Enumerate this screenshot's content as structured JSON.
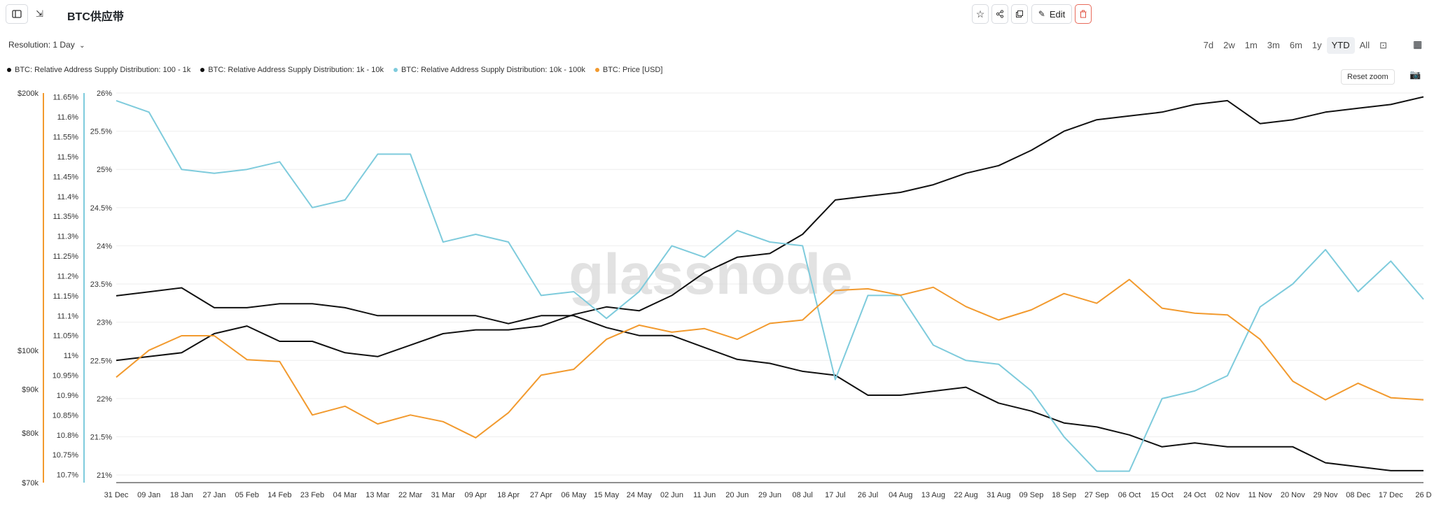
{
  "header": {
    "title": "BTC供应带",
    "edit_label": "Edit"
  },
  "controls": {
    "resolution_label": "Resolution: 1 Day",
    "ranges": [
      "7d",
      "2w",
      "1m",
      "3m",
      "6m",
      "1y",
      "YTD",
      "All"
    ],
    "active_range": "YTD",
    "reset_zoom": "Reset zoom"
  },
  "legend": [
    {
      "name": "BTC: Relative Address Supply Distribution: 100 - 1k",
      "color": "#111111"
    },
    {
      "name": "BTC: Relative Address Supply Distribution: 1k - 10k",
      "color": "#111111"
    },
    {
      "name": "BTC: Relative Address Supply Distribution: 10k - 100k",
      "color": "#7ecbdc"
    },
    {
      "name": "BTC: Price [USD]",
      "color": "#f29a2e"
    }
  ],
  "watermark": "glassnode",
  "chart_data": {
    "type": "line",
    "grid": true,
    "x_ticks": [
      "31 Dec",
      "09 Jan",
      "18 Jan",
      "27 Jan",
      "05 Feb",
      "14 Feb",
      "23 Feb",
      "04 Mar",
      "13 Mar",
      "22 Mar",
      "31 Mar",
      "09 Apr",
      "18 Apr",
      "27 Apr",
      "06 May",
      "15 May",
      "24 May",
      "02 Jun",
      "11 Jun",
      "20 Jun",
      "29 Jun",
      "08 Jul",
      "17 Jul",
      "26 Jul",
      "04 Aug",
      "13 Aug",
      "22 Aug",
      "31 Aug",
      "09 Sep",
      "18 Sep",
      "27 Sep",
      "06 Oct",
      "15 Oct",
      "24 Oct",
      "02 Nov",
      "11 Nov",
      "20 Nov",
      "29 Nov",
      "08 Dec",
      "17 Dec",
      "26 D"
    ],
    "axes": {
      "left_pct": {
        "ticks": [
          "26%",
          "25.5%",
          "25%",
          "24.5%",
          "24%",
          "23.5%",
          "23%",
          "22.5%",
          "22%",
          "21.5%",
          "21%"
        ],
        "range": [
          20.9,
          26.0
        ]
      },
      "mid_pct": {
        "ticks": [
          "11.65%",
          "11.6%",
          "11.55%",
          "11.5%",
          "11.45%",
          "11.4%",
          "11.35%",
          "11.3%",
          "11.25%",
          "11.2%",
          "11.15%",
          "11.1%",
          "11.05%",
          "11%",
          "10.95%",
          "10.9%",
          "10.85%",
          "10.8%",
          "10.75%",
          "10.7%"
        ],
        "range": [
          10.68,
          11.66
        ]
      },
      "price": {
        "ticks": [
          "$200k",
          "$100k",
          "$90k",
          "$80k",
          "$70k"
        ],
        "scale": "log",
        "range": [
          70000,
          200000
        ]
      }
    },
    "series": [
      {
        "name": "BTC: Relative Address Supply Distribution: 100 - 1k",
        "axis": "left_pct",
        "color": "#111111",
        "x": [
          0,
          9,
          18,
          27,
          36,
          45,
          54,
          63,
          72,
          81,
          90,
          99,
          108,
          117,
          126,
          135,
          144,
          153,
          162,
          171,
          180,
          189,
          198,
          207,
          216,
          225,
          234,
          243,
          252,
          261,
          270,
          279,
          288,
          297,
          306,
          315,
          324,
          333,
          342,
          351,
          360
        ],
        "y": [
          22.5,
          22.55,
          22.6,
          22.85,
          22.95,
          22.75,
          22.75,
          22.6,
          22.55,
          22.7,
          22.85,
          22.9,
          22.9,
          22.95,
          23.1,
          23.2,
          23.15,
          23.35,
          23.65,
          23.85,
          23.9,
          24.15,
          24.6,
          24.65,
          24.7,
          24.8,
          24.95,
          25.05,
          25.25,
          25.5,
          25.65,
          25.7,
          25.75,
          25.85,
          25.9,
          25.6,
          25.65,
          25.75,
          25.8,
          25.85,
          25.95
        ]
      },
      {
        "name": "BTC: Relative Address Supply Distribution: 1k - 10k",
        "axis": "mid_pct",
        "color": "#111111",
        "x": [
          0,
          9,
          18,
          27,
          36,
          45,
          54,
          63,
          72,
          81,
          90,
          99,
          108,
          117,
          126,
          135,
          144,
          153,
          162,
          171,
          180,
          189,
          198,
          207,
          216,
          225,
          234,
          243,
          252,
          261,
          270,
          279,
          288,
          297,
          306,
          315,
          324,
          333,
          342,
          351,
          360
        ],
        "y": [
          11.15,
          11.16,
          11.17,
          11.12,
          11.12,
          11.13,
          11.13,
          11.12,
          11.1,
          11.1,
          11.1,
          11.1,
          11.08,
          11.1,
          11.1,
          11.07,
          11.05,
          11.05,
          11.02,
          10.99,
          10.98,
          10.96,
          10.95,
          10.9,
          10.9,
          10.91,
          10.92,
          10.88,
          10.86,
          10.83,
          10.82,
          10.8,
          10.77,
          10.78,
          10.77,
          10.77,
          10.77,
          10.73,
          10.72,
          10.71,
          10.71
        ]
      },
      {
        "name": "BTC: Relative Address Supply Distribution: 10k - 100k",
        "axis": "left_pct",
        "color": "#7ecbdc",
        "x": [
          0,
          9,
          18,
          27,
          36,
          45,
          54,
          63,
          72,
          81,
          90,
          99,
          108,
          117,
          126,
          135,
          144,
          153,
          162,
          171,
          180,
          189,
          198,
          207,
          216,
          225,
          234,
          243,
          252,
          261,
          270,
          279,
          288,
          297,
          306,
          315,
          324,
          333,
          342,
          351,
          360
        ],
        "y": [
          25.9,
          25.75,
          25.0,
          24.95,
          25.0,
          25.1,
          24.5,
          24.6,
          25.2,
          25.2,
          24.05,
          24.15,
          24.05,
          23.35,
          23.4,
          23.05,
          23.4,
          24.0,
          23.85,
          24.2,
          24.05,
          24.0,
          22.25,
          23.35,
          23.35,
          22.7,
          22.5,
          22.45,
          22.1,
          21.5,
          21.05,
          21.05,
          22.0,
          22.1,
          22.3,
          23.2,
          23.5,
          23.95,
          23.4,
          23.8,
          23.3
        ]
      },
      {
        "name": "BTC: Price [USD]",
        "axis": "price",
        "color": "#f29a2e",
        "x": [
          0,
          9,
          18,
          27,
          36,
          45,
          54,
          63,
          72,
          81,
          90,
          99,
          108,
          117,
          126,
          135,
          144,
          153,
          162,
          171,
          180,
          189,
          198,
          207,
          216,
          225,
          234,
          243,
          252,
          261,
          270,
          279,
          288,
          297,
          306,
          315,
          324,
          333,
          342,
          351,
          360
        ],
        "y": [
          93000,
          100000,
          104000,
          104000,
          97500,
          97000,
          84000,
          86000,
          82000,
          84000,
          82500,
          79000,
          84500,
          93500,
          95000,
          103000,
          107000,
          105000,
          106000,
          103000,
          107500,
          108500,
          117500,
          118000,
          116000,
          118500,
          112500,
          108500,
          111500,
          116500,
          113500,
          121000,
          112000,
          110500,
          110000,
          103000,
          92000,
          87500,
          91500,
          88000,
          87500
        ]
      }
    ]
  }
}
